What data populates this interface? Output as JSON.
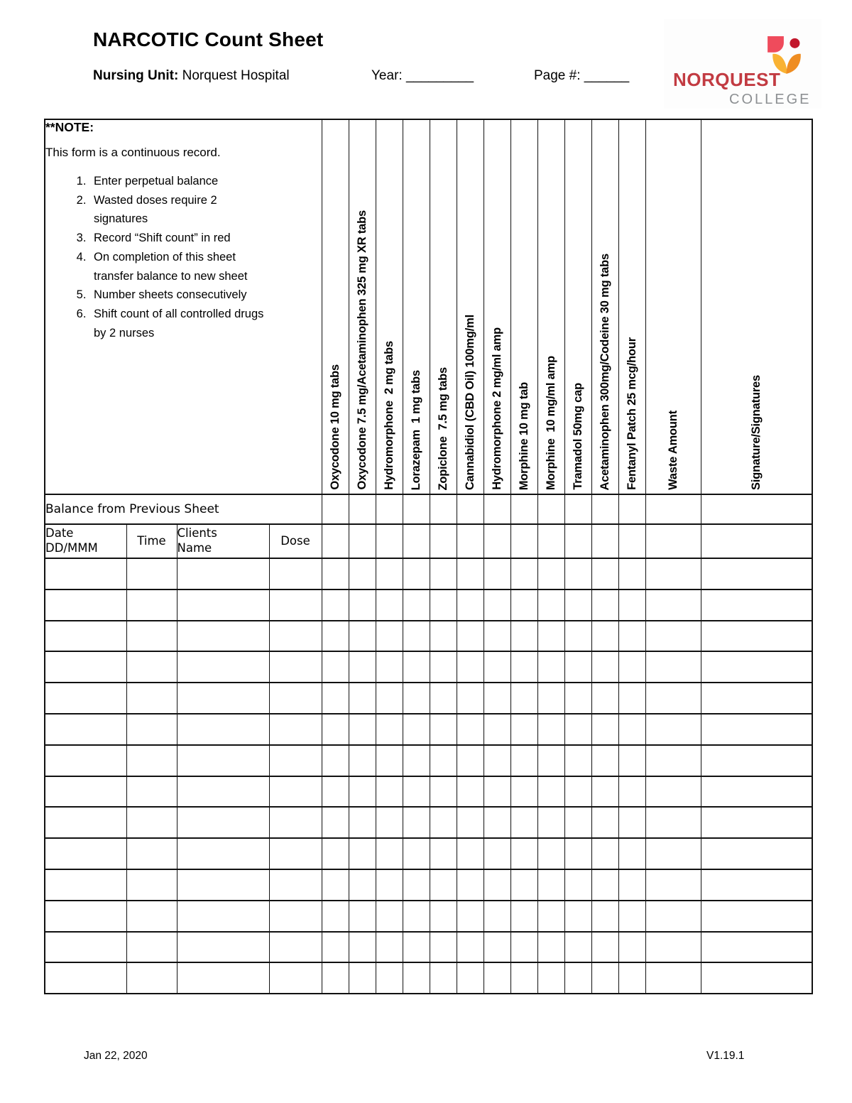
{
  "header": {
    "title": "NARCOTIC Count Sheet",
    "nursing_unit_label": "Nursing Unit:",
    "nursing_unit_value": "Norquest Hospital",
    "year_field": "Year: _________",
    "page_field": "Page #: ______"
  },
  "logo": {
    "wordmark": "NORQUEST",
    "college": "COLLEGE",
    "colors": {
      "wordmark_red": "#c23b42",
      "college_gray": "#8d9093",
      "square_pink": "#ef4b5c",
      "circle_red": "#c2172c",
      "petal_yellow": "#f9b233",
      "petal_orange": "#ef8d22"
    }
  },
  "note": {
    "heading": "**NOTE:",
    "intro": "This form is a continuous record.",
    "items": [
      "Enter perpetual balance",
      "Wasted doses require 2\nsignatures",
      "Record “Shift count” in red",
      "On completion of this sheet\ntransfer balance to new sheet",
      "Number sheets consecutively",
      "Shift count of all controlled drugs\nby 2 nurses"
    ]
  },
  "table": {
    "balance_label": "Balance from Previous Sheet",
    "row_headers": [
      "Date\nDD/MMM",
      "Time",
      "Clients\nName",
      "Dose"
    ],
    "columns": [
      "Oxycodone 10 mg tabs",
      "Oxycodone 7.5 mg/Acetaminophen 325 mg XR tabs",
      "Hydromorphone  2 mg tabs",
      "Lorazepam  1 mg tabs",
      "Zopiclone  7.5 mg tabs",
      "Cannabidiol (CBD Oil) 100mg/ml",
      "Hydromorphone 2 mg/ml amp",
      "Morphine 10 mg tab",
      "Morphine  10 mg/ml amp",
      "Tramadol 50mg cap",
      "Acetaminophen 300mg/Codeine 30 mg tabs",
      "Fentanyl Patch 25 mcg/hour",
      "Waste Amount",
      "Signature/Signatures"
    ],
    "empty_row_count": 14
  },
  "footer": {
    "date": "Jan 22, 2020",
    "version": "V1.19.1"
  }
}
